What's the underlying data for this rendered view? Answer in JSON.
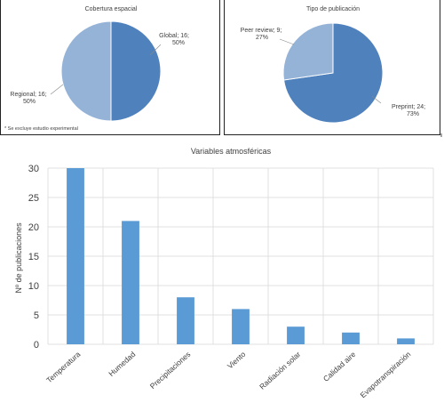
{
  "chart_data": [
    {
      "type": "pie",
      "title": "Cobertura espacial",
      "slices": [
        {
          "label": "Global",
          "value": 16,
          "percent": "50%",
          "color": "#4f81bd"
        },
        {
          "label": "Regional",
          "value": 16,
          "percent": "50%",
          "color": "#95b3d7"
        }
      ],
      "footnote": "* Se excluye estudio experimental"
    },
    {
      "type": "pie",
      "title": "Tipo de publicación",
      "slices": [
        {
          "label": "Preprint",
          "value": 24,
          "percent": "73%",
          "color": "#4f81bd"
        },
        {
          "label": "Peer review",
          "value": 9,
          "percent": "27%",
          "color": "#95b3d7"
        }
      ]
    },
    {
      "type": "bar",
      "title": "Variables atmosféricas",
      "ylabel": "Nº de publicaciones",
      "categories": [
        "Temperatura",
        "Humedad",
        "Precipitaciones",
        "Viento",
        "Radiación solar",
        "Calidad aire",
        "Evapotranspiración"
      ],
      "values": [
        30,
        21,
        8,
        6,
        3,
        2,
        1
      ],
      "ylim": [
        0,
        30
      ],
      "yticks": [
        0,
        5,
        10,
        15,
        20,
        25,
        30
      ],
      "grid": true,
      "bar_color": "#5b9bd5"
    }
  ]
}
